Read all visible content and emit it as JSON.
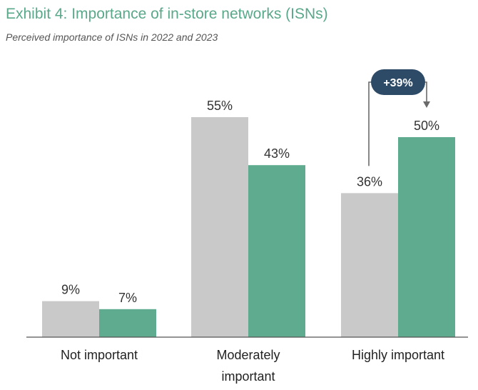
{
  "header": {
    "title": "Exhibit 4: Importance of in-store networks (ISNs)",
    "subtitle": "Perceived importance of ISNs in 2022 and 2023"
  },
  "colors": {
    "series_2022": "#c9c9c9",
    "series_2023": "#5eab8f",
    "title": "#5aa88a",
    "callout": "#2d4a66"
  },
  "chart_data": {
    "type": "bar",
    "categories": [
      "Not important",
      "Moderately important",
      "Highly important"
    ],
    "category_lines": [
      [
        "Not important"
      ],
      [
        "Moderately",
        "important"
      ],
      [
        "Highly important"
      ]
    ],
    "series": [
      {
        "values": [
          9,
          55,
          36
        ],
        "labels": [
          "9%",
          "55%",
          "36%"
        ]
      },
      {
        "values": [
          7,
          43,
          50
        ],
        "labels": [
          "7%",
          "43%",
          "50%"
        ]
      }
    ],
    "ylim": [
      0,
      60
    ],
    "grid": false,
    "legend": "none",
    "annotation": {
      "text": "+39%",
      "category": "Highly important"
    }
  }
}
